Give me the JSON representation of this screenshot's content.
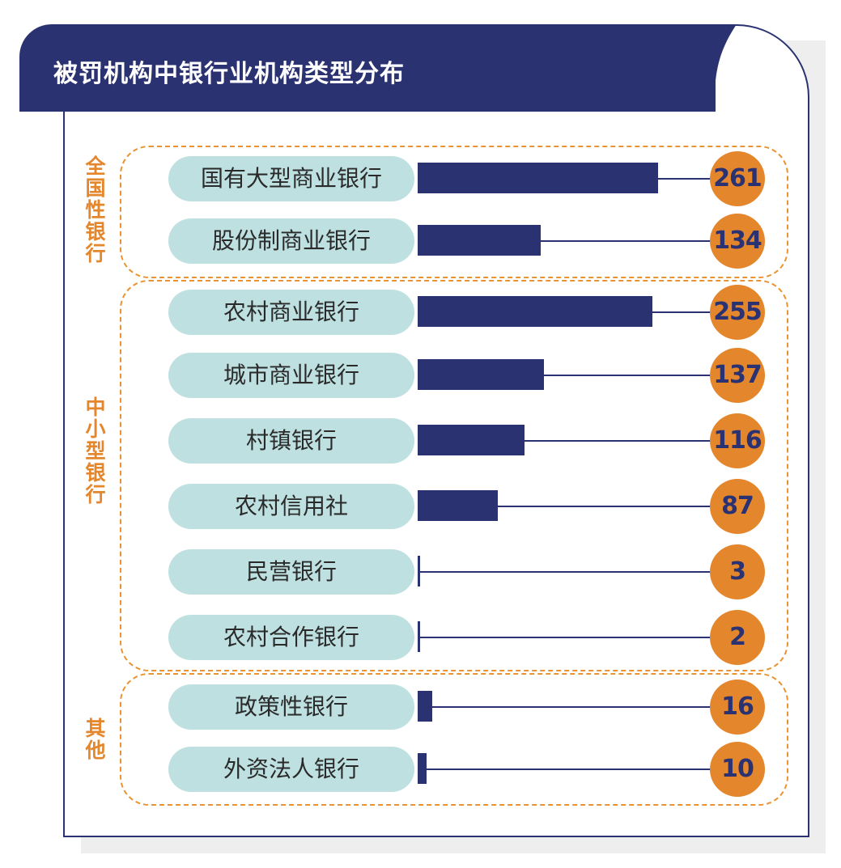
{
  "header": {
    "title": "被罚机构中银行业机构类型分布"
  },
  "colors": {
    "navy": "#2b3272",
    "orange": "#e4862c",
    "pill": "#bfe0e1"
  },
  "groups": [
    {
      "label": "全国性银行"
    },
    {
      "label": "中小型银行"
    },
    {
      "label": "其他"
    }
  ],
  "chart_data": {
    "type": "bar",
    "orientation": "horizontal",
    "title": "被罚机构中银行业机构类型分布",
    "categories": [
      "国有大型商业银行",
      "股份制商业银行",
      "农村商业银行",
      "城市商业银行",
      "村镇银行",
      "农村信用社",
      "民营银行",
      "农村合作银行",
      "政策性银行",
      "外资法人银行"
    ],
    "values": [
      261,
      134,
      255,
      137,
      116,
      87,
      3,
      2,
      16,
      10
    ],
    "groups": [
      {
        "label": "全国性银行",
        "categories": [
          "国有大型商业银行",
          "股份制商业银行"
        ]
      },
      {
        "label": "中小型银行",
        "categories": [
          "农村商业银行",
          "城市商业银行",
          "村镇银行",
          "农村信用社",
          "民营银行",
          "农村合作银行"
        ]
      },
      {
        "label": "其他",
        "categories": [
          "政策性银行",
          "外资法人银行"
        ]
      }
    ],
    "xlim": [
      0,
      261
    ],
    "grid": false,
    "legend": "none"
  }
}
